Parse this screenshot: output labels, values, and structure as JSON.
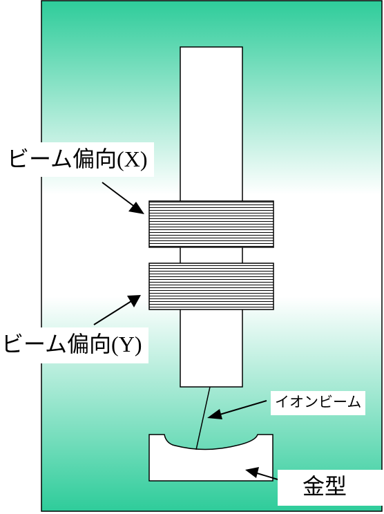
{
  "labels": {
    "beam_x": {
      "text": "ビーム偏向",
      "axis": "(X)"
    },
    "beam_y": {
      "text": "ビーム偏向",
      "axis": "(Y)"
    },
    "ion_beam": "イオンビーム",
    "mold": "金型"
  },
  "colors": {
    "panel_edge": "#2ecc9a",
    "panel_center": "#ffffff",
    "outline": "#000000",
    "fill": "#ffffff"
  }
}
